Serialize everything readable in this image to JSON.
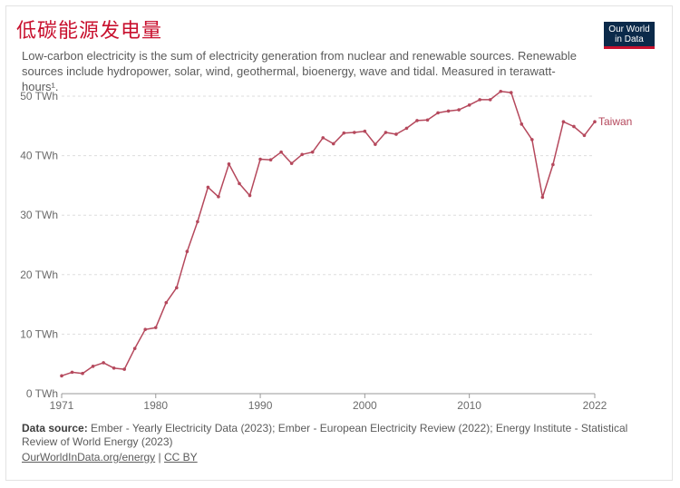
{
  "header": {
    "title": "低碳能源发电量",
    "subtitle": "Low-carbon electricity is the sum of electricity generation from nuclear and renewable sources. Renewable sources include hydropower, solar, wind, geothermal, bioenergy, wave and tidal. Measured in terawatt-hours¹."
  },
  "logo": {
    "line1": "Our World",
    "line2": "in Data"
  },
  "footer": {
    "source_label": "Data source:",
    "source_text": "Ember - Yearly Electricity Data (2023); Ember - European Electricity Review (2022); Energy Institute - Statistical Review of World Energy (2023)",
    "link_text": "OurWorldInData.org/energy",
    "separator": "|",
    "license_text": "CC BY"
  },
  "colors": {
    "series": "#b5485c",
    "title": "#c8102e",
    "grid": "#dddddd"
  },
  "chart_data": {
    "type": "line",
    "ylim": [
      0,
      50
    ],
    "xlim": [
      1971,
      2022
    ],
    "yticks": [
      0,
      10,
      20,
      30,
      40,
      50
    ],
    "ytick_labels": [
      "0 TWh",
      "10 TWh",
      "20 TWh",
      "30 TWh",
      "40 TWh",
      "50 TWh"
    ],
    "xticks": [
      1971,
      1980,
      1990,
      2000,
      2010,
      2022
    ],
    "xtick_labels": [
      "1971",
      "1980",
      "1990",
      "2000",
      "2010",
      "2022"
    ],
    "grid": "horizontal dashed",
    "series": [
      {
        "name": "Taiwan",
        "x": [
          1971,
          1972,
          1973,
          1974,
          1975,
          1976,
          1977,
          1978,
          1979,
          1980,
          1981,
          1982,
          1983,
          1984,
          1985,
          1986,
          1987,
          1988,
          1989,
          1990,
          1991,
          1992,
          1993,
          1994,
          1995,
          1996,
          1997,
          1998,
          1999,
          2000,
          2001,
          2002,
          2003,
          2004,
          2005,
          2006,
          2007,
          2008,
          2009,
          2010,
          2011,
          2012,
          2013,
          2014,
          2015,
          2016,
          2017,
          2018,
          2019,
          2020,
          2021,
          2022
        ],
        "y": [
          3.0,
          3.6,
          3.4,
          4.6,
          5.2,
          4.3,
          4.1,
          7.6,
          10.8,
          11.1,
          15.3,
          17.8,
          23.9,
          28.9,
          34.7,
          33.1,
          38.6,
          35.3,
          33.3,
          39.4,
          39.3,
          40.6,
          38.7,
          40.2,
          40.6,
          43.0,
          42.0,
          43.8,
          43.9,
          44.1,
          41.9,
          43.9,
          43.6,
          44.6,
          45.9,
          46.0,
          47.2,
          47.5,
          47.7,
          48.5,
          49.4,
          49.4,
          50.8,
          50.6,
          45.3,
          42.7,
          33.0,
          38.5,
          45.7,
          44.9,
          43.4,
          45.7
        ]
      }
    ]
  }
}
